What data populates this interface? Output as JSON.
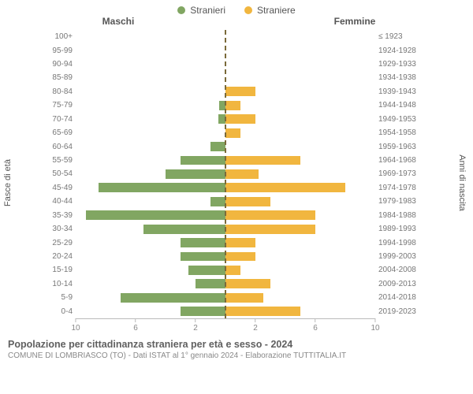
{
  "legend": {
    "male": {
      "label": "Stranieri",
      "color": "#81a662"
    },
    "female": {
      "label": "Straniere",
      "color": "#f1b63f"
    }
  },
  "headers": {
    "male": "Maschi",
    "female": "Femmine"
  },
  "yaxis": {
    "left_label": "Fasce di età",
    "right_label": "Anni di nascita"
  },
  "chart": {
    "type": "population-pyramid",
    "xmax": 10,
    "xticks": [
      10,
      6,
      2,
      2,
      6,
      10
    ],
    "bar_colors": {
      "male": "#81a662",
      "female": "#f1b63f"
    },
    "background_color": "#ffffff",
    "center_line_color": "#7a6a3a",
    "grid_color": "#bbbbbb",
    "age_label_color": "#777777",
    "axis_font_size": 10,
    "rows": [
      {
        "age": "100+",
        "birth": "≤ 1923",
        "m": 0,
        "f": 0
      },
      {
        "age": "95-99",
        "birth": "1924-1928",
        "m": 0,
        "f": 0
      },
      {
        "age": "90-94",
        "birth": "1929-1933",
        "m": 0,
        "f": 0
      },
      {
        "age": "85-89",
        "birth": "1934-1938",
        "m": 0,
        "f": 0
      },
      {
        "age": "80-84",
        "birth": "1939-1943",
        "m": 0,
        "f": 2
      },
      {
        "age": "75-79",
        "birth": "1944-1948",
        "m": 0.4,
        "f": 1
      },
      {
        "age": "70-74",
        "birth": "1949-1953",
        "m": 0.5,
        "f": 2
      },
      {
        "age": "65-69",
        "birth": "1954-1958",
        "m": 0,
        "f": 1
      },
      {
        "age": "60-64",
        "birth": "1959-1963",
        "m": 1,
        "f": 0
      },
      {
        "age": "55-59",
        "birth": "1964-1968",
        "m": 3,
        "f": 5
      },
      {
        "age": "50-54",
        "birth": "1969-1973",
        "m": 4,
        "f": 2.2
      },
      {
        "age": "45-49",
        "birth": "1974-1978",
        "m": 8.5,
        "f": 8
      },
      {
        "age": "40-44",
        "birth": "1979-1983",
        "m": 1,
        "f": 3
      },
      {
        "age": "35-39",
        "birth": "1984-1988",
        "m": 9.3,
        "f": 6
      },
      {
        "age": "30-34",
        "birth": "1989-1993",
        "m": 5.5,
        "f": 6
      },
      {
        "age": "25-29",
        "birth": "1994-1998",
        "m": 3,
        "f": 2
      },
      {
        "age": "20-24",
        "birth": "1999-2003",
        "m": 3,
        "f": 2
      },
      {
        "age": "15-19",
        "birth": "2004-2008",
        "m": 2.5,
        "f": 1
      },
      {
        "age": "10-14",
        "birth": "2009-2013",
        "m": 2,
        "f": 3
      },
      {
        "age": "5-9",
        "birth": "2014-2018",
        "m": 7,
        "f": 2.5
      },
      {
        "age": "0-4",
        "birth": "2019-2023",
        "m": 3,
        "f": 5
      }
    ]
  },
  "footer": {
    "title": "Popolazione per cittadinanza straniera per età e sesso - 2024",
    "subtitle": "COMUNE DI LOMBRIASCO (TO) - Dati ISTAT al 1° gennaio 2024 - Elaborazione TUTTITALIA.IT"
  }
}
